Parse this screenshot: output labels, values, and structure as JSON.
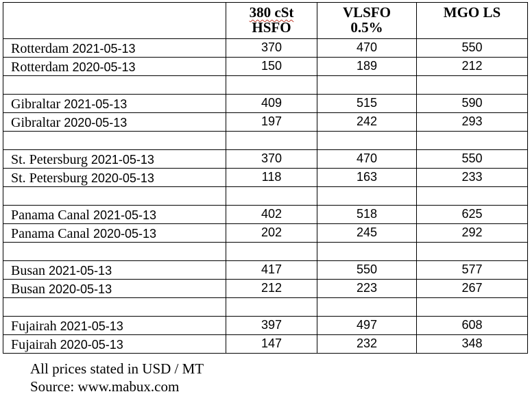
{
  "table": {
    "headers": {
      "location": "",
      "hsfo_line1": "380 cSt",
      "hsfo_line2": "HSFO",
      "vlsfo_line1": "VLSFO",
      "vlsfo_line2": "0.5%",
      "mgo": "MGO LS"
    },
    "rows": [
      {
        "port": "Rotterdam",
        "date": "2021-05-13",
        "hsfo": "370",
        "vlsfo": "470",
        "mgo": "550"
      },
      {
        "port": "Rotterdam",
        "date": "2020-05-13",
        "hsfo": "150",
        "vlsfo": "189",
        "mgo": "212"
      },
      {
        "port": "Gibraltar",
        "date": "2021-05-13",
        "hsfo": "409",
        "vlsfo": "515",
        "mgo": "590"
      },
      {
        "port": "Gibraltar",
        "date": "2020-05-13",
        "hsfo": "197",
        "vlsfo": "242",
        "mgo": "293"
      },
      {
        "port": "St. Petersburg",
        "date": "2021-05-13",
        "hsfo": "370",
        "vlsfo": "470",
        "mgo": "550"
      },
      {
        "port": "St. Petersburg",
        "date": "2020-05-13",
        "hsfo": "118",
        "vlsfo": "163",
        "mgo": "233"
      },
      {
        "port": "Panama Canal",
        "date": "2021-05-13",
        "hsfo": "402",
        "vlsfo": "518",
        "mgo": "625"
      },
      {
        "port": "Panama Canal",
        "date": "2020-05-13",
        "hsfo": "202",
        "vlsfo": "245",
        "mgo": "292"
      },
      {
        "port": "Busan",
        "date": "2021-05-13",
        "hsfo": "417",
        "vlsfo": "550",
        "mgo": "577"
      },
      {
        "port": "Busan",
        "date": "2020-05-13",
        "hsfo": "212",
        "vlsfo": "223",
        "mgo": "267"
      },
      {
        "port": "Fujairah",
        "date": "2021-05-13",
        "hsfo": "397",
        "vlsfo": "497",
        "mgo": "608"
      },
      {
        "port": "Fujairah",
        "date": "2020-05-13",
        "hsfo": "147",
        "vlsfo": "232",
        "mgo": "348"
      }
    ]
  },
  "notes": {
    "units": "All prices stated in USD / MT",
    "source": "Source: www.mabux.com"
  }
}
